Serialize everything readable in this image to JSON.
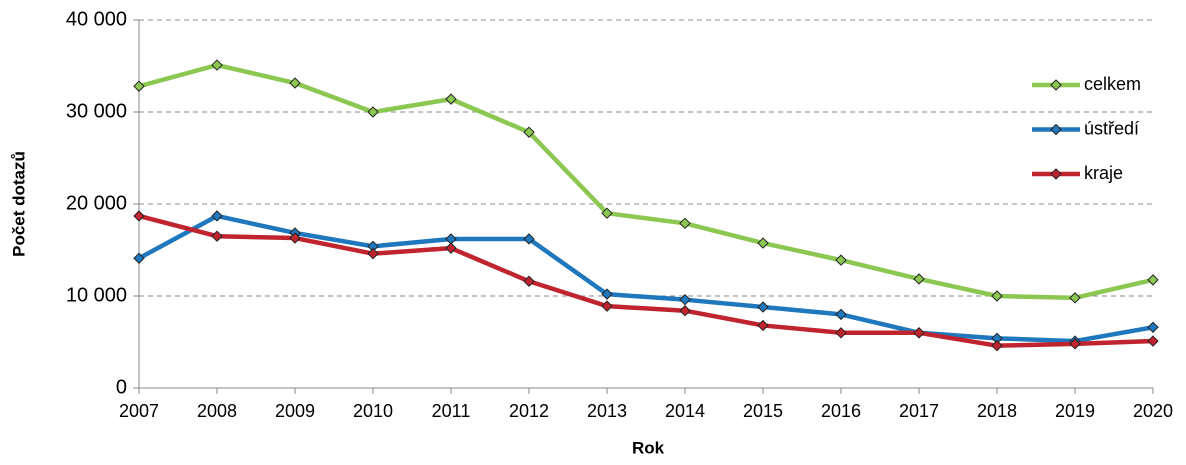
{
  "chart_data": {
    "type": "line",
    "x_label": "Rok",
    "y_label": "Počet dotazů",
    "x": [
      2007,
      2008,
      2009,
      2010,
      2011,
      2012,
      2013,
      2014,
      2015,
      2016,
      2017,
      2018,
      2019,
      2020
    ],
    "xlim": [
      2007,
      2020
    ],
    "xticks": [
      2007,
      2008,
      2009,
      2010,
      2011,
      2012,
      2013,
      2014,
      2015,
      2016,
      2017,
      2018,
      2019,
      2020
    ],
    "ylim": [
      0,
      40000
    ],
    "yticks": [
      0,
      {
        "value": 10000,
        "label": "10 000"
      },
      {
        "value": 20000,
        "label": "20 000"
      },
      {
        "value": 30000,
        "label": "30 000"
      },
      {
        "value": 40000,
        "label": "40 000"
      }
    ],
    "grid": true,
    "legend": "right",
    "series": [
      {
        "name": "celkem",
        "color": "#8cc751",
        "values": [
          32800,
          35100,
          33150,
          30000,
          31400,
          27800,
          19000,
          17900,
          15750,
          13900,
          11850,
          10000,
          9800,
          11750
        ]
      },
      {
        "name": "ústředí",
        "color": "#1f77bd",
        "values": [
          14100,
          18700,
          16850,
          15400,
          16200,
          16200,
          10200,
          9600,
          8800,
          8000,
          6000,
          5400,
          5100,
          6600
        ]
      },
      {
        "name": "kraje",
        "color": "#c0242e",
        "values": [
          18700,
          16500,
          16300,
          14600,
          15200,
          11600,
          8900,
          8400,
          6800,
          6000,
          6000,
          4600,
          4800,
          5100
        ]
      }
    ]
  }
}
